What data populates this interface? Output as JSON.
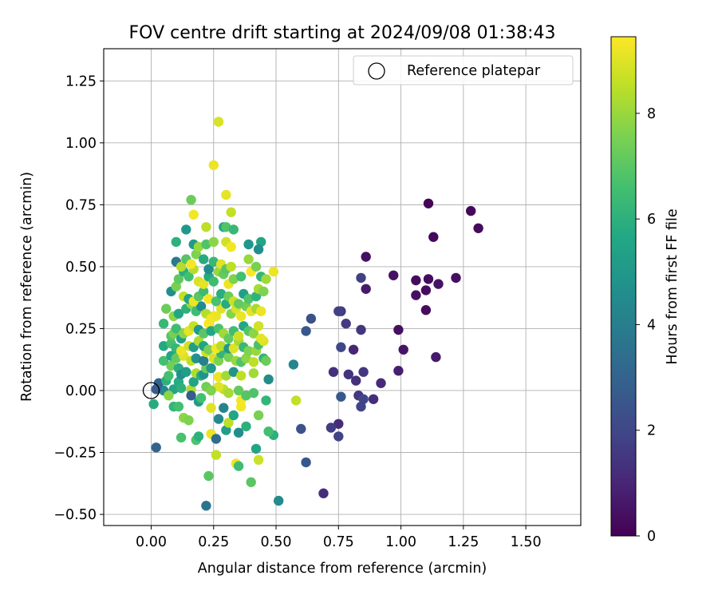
{
  "chart_data": {
    "type": "scatter",
    "title": "FOV centre drift starting at 2024/09/08 01:38:43",
    "xlabel": "Angular distance from reference (arcmin)",
    "ylabel": "Rotation from reference (arcmin)",
    "xlim": [
      -0.19,
      1.72
    ],
    "ylim": [
      -0.545,
      1.38
    ],
    "xticks": [
      "0.00",
      "0.25",
      "0.50",
      "0.75",
      "1.00",
      "1.25",
      "1.50"
    ],
    "yticks": [
      "−0.50",
      "−0.25",
      "0.00",
      "0.25",
      "0.50",
      "0.75",
      "1.00",
      "1.25"
    ],
    "grid": true,
    "legend": {
      "position": "top-right",
      "entries": [
        "Reference platepar"
      ]
    },
    "reference_point": {
      "x": 0.0,
      "y": 0.0
    },
    "colorbar": {
      "label": "Hours from first FF file",
      "colormap": "viridis",
      "range": [
        0,
        9.45
      ],
      "ticks": [
        "0",
        "2",
        "4",
        "6",
        "8"
      ]
    },
    "points": [
      [
        1.11,
        0.755,
        0.1
      ],
      [
        1.28,
        0.725,
        0.2
      ],
      [
        1.31,
        0.655,
        0.3
      ],
      [
        1.13,
        0.62,
        0.2
      ],
      [
        0.86,
        0.54,
        0.4
      ],
      [
        0.84,
        0.455,
        1.8
      ],
      [
        0.97,
        0.465,
        0.4
      ],
      [
        1.06,
        0.445,
        0.3
      ],
      [
        1.11,
        0.45,
        0.3
      ],
      [
        1.22,
        0.455,
        0.4
      ],
      [
        1.15,
        0.43,
        0.5
      ],
      [
        1.1,
        0.405,
        0.3
      ],
      [
        0.86,
        0.41,
        0.7
      ],
      [
        1.06,
        0.385,
        0.4
      ],
      [
        1.1,
        0.325,
        0.3
      ],
      [
        0.76,
        0.32,
        1.5
      ],
      [
        0.75,
        0.32,
        1.8
      ],
      [
        0.64,
        0.29,
        2.3
      ],
      [
        0.78,
        0.27,
        1.6
      ],
      [
        0.62,
        0.24,
        2.6
      ],
      [
        0.84,
        0.245,
        1.5
      ],
      [
        0.99,
        0.245,
        0.4
      ],
      [
        0.76,
        0.175,
        2.0
      ],
      [
        0.81,
        0.165,
        1.0
      ],
      [
        1.01,
        0.165,
        0.5
      ],
      [
        1.14,
        0.135,
        0.7
      ],
      [
        0.73,
        0.075,
        1.3
      ],
      [
        0.79,
        0.065,
        1.4
      ],
      [
        0.85,
        0.075,
        1.5
      ],
      [
        0.99,
        0.08,
        0.8
      ],
      [
        0.82,
        0.04,
        1.3
      ],
      [
        0.92,
        0.03,
        1.1
      ],
      [
        0.76,
        -0.025,
        2.6
      ],
      [
        0.83,
        -0.02,
        1.5
      ],
      [
        0.85,
        -0.035,
        2.0
      ],
      [
        0.89,
        -0.035,
        1.2
      ],
      [
        0.84,
        -0.065,
        1.9
      ],
      [
        0.75,
        -0.135,
        1.2
      ],
      [
        0.72,
        -0.15,
        1.7
      ],
      [
        0.6,
        -0.155,
        2.4
      ],
      [
        0.75,
        -0.185,
        1.9
      ],
      [
        0.62,
        -0.29,
        2.6
      ],
      [
        0.69,
        -0.415,
        1.2
      ],
      [
        0.57,
        0.105,
        4.3
      ],
      [
        0.58,
        -0.04,
        8.6
      ],
      [
        0.51,
        -0.445,
        4.5
      ],
      [
        0.02,
        -0.23,
        3.0
      ],
      [
        0.22,
        -0.465,
        3.6
      ],
      [
        0.23,
        -0.345,
        7.0
      ],
      [
        0.4,
        -0.37,
        7.0
      ],
      [
        0.34,
        -0.295,
        9.2
      ],
      [
        0.35,
        -0.305,
        6.5
      ],
      [
        0.26,
        -0.26,
        8.6
      ],
      [
        0.43,
        -0.28,
        8.7
      ],
      [
        0.42,
        -0.235,
        5.5
      ],
      [
        0.49,
        -0.18,
        6.0
      ],
      [
        0.47,
        -0.165,
        6.6
      ],
      [
        0.43,
        -0.1,
        7.5
      ],
      [
        0.24,
        -0.175,
        9.2
      ],
      [
        0.18,
        -0.2,
        6.8
      ],
      [
        0.19,
        -0.185,
        6.0
      ],
      [
        0.12,
        -0.19,
        6.7
      ],
      [
        0.26,
        -0.195,
        3.4
      ],
      [
        0.3,
        -0.16,
        5.2
      ],
      [
        0.35,
        -0.17,
        4.6
      ],
      [
        0.38,
        -0.145,
        6.0
      ],
      [
        0.27,
        -0.115,
        4.4
      ],
      [
        0.31,
        -0.13,
        8.5
      ],
      [
        0.13,
        -0.11,
        7.8
      ],
      [
        0.15,
        -0.12,
        7.6
      ],
      [
        0.24,
        -0.07,
        9.0
      ],
      [
        0.29,
        -0.07,
        4.2
      ],
      [
        0.36,
        -0.065,
        9.3
      ],
      [
        0.36,
        -0.04,
        9.3
      ],
      [
        0.46,
        -0.04,
        6.2
      ],
      [
        0.41,
        -0.01,
        6.8
      ],
      [
        0.35,
        0.0,
        7.2
      ],
      [
        0.29,
        0.005,
        8.5
      ],
      [
        0.27,
        0.015,
        9.0
      ],
      [
        0.22,
        0.015,
        7.4
      ],
      [
        0.16,
        0.005,
        8.3
      ],
      [
        0.05,
        0.0,
        4.3
      ],
      [
        0.02,
        0.005,
        2.8
      ],
      [
        0.03,
        0.03,
        3.0
      ],
      [
        0.09,
        0.005,
        5.5
      ],
      [
        0.16,
        -0.02,
        2.8
      ],
      [
        0.17,
        0.035,
        5.5
      ],
      [
        0.11,
        0.035,
        5.8
      ],
      [
        0.01,
        -0.055,
        5.8
      ],
      [
        0.09,
        -0.065,
        6.2
      ],
      [
        0.11,
        -0.065,
        6.6
      ],
      [
        0.19,
        -0.045,
        5.2
      ],
      [
        0.06,
        0.04,
        6.0
      ],
      [
        0.07,
        0.06,
        6.6
      ],
      [
        0.08,
        0.1,
        7.4
      ],
      [
        0.11,
        0.09,
        5.9
      ],
      [
        0.12,
        0.065,
        4.7
      ],
      [
        0.14,
        0.075,
        5.2
      ],
      [
        0.18,
        0.07,
        8.3
      ],
      [
        0.2,
        0.06,
        5.9
      ],
      [
        0.21,
        0.065,
        4.8
      ],
      [
        0.22,
        0.09,
        7.2
      ],
      [
        0.24,
        0.09,
        5.0
      ],
      [
        0.27,
        0.055,
        9.2
      ],
      [
        0.3,
        0.06,
        8.1
      ],
      [
        0.33,
        0.075,
        4.8
      ],
      [
        0.36,
        0.06,
        8.5
      ],
      [
        0.41,
        0.07,
        8.1
      ],
      [
        0.47,
        0.045,
        4.6
      ],
      [
        0.05,
        0.12,
        6.6
      ],
      [
        0.08,
        0.14,
        5.5
      ],
      [
        0.1,
        0.13,
        7.2
      ],
      [
        0.13,
        0.14,
        9.0
      ],
      [
        0.16,
        0.12,
        8.5
      ],
      [
        0.18,
        0.13,
        4.8
      ],
      [
        0.21,
        0.12,
        4.0
      ],
      [
        0.22,
        0.155,
        8.7
      ],
      [
        0.25,
        0.13,
        8.9
      ],
      [
        0.27,
        0.12,
        7.6
      ],
      [
        0.28,
        0.15,
        6.2
      ],
      [
        0.31,
        0.135,
        7.5
      ],
      [
        0.34,
        0.12,
        8.0
      ],
      [
        0.36,
        0.115,
        6.8
      ],
      [
        0.38,
        0.13,
        7.8
      ],
      [
        0.41,
        0.115,
        8.5
      ],
      [
        0.45,
        0.13,
        6.2
      ],
      [
        0.46,
        0.12,
        7.3
      ],
      [
        0.05,
        0.18,
        5.7
      ],
      [
        0.08,
        0.19,
        6.6
      ],
      [
        0.1,
        0.17,
        6.2
      ],
      [
        0.12,
        0.16,
        9.2
      ],
      [
        0.15,
        0.18,
        8.8
      ],
      [
        0.17,
        0.175,
        5.2
      ],
      [
        0.19,
        0.2,
        8.3
      ],
      [
        0.21,
        0.18,
        5.5
      ],
      [
        0.23,
        0.165,
        7.5
      ],
      [
        0.26,
        0.17,
        9.3
      ],
      [
        0.28,
        0.18,
        8.4
      ],
      [
        0.31,
        0.17,
        5.0
      ],
      [
        0.33,
        0.17,
        9.0
      ],
      [
        0.35,
        0.2,
        8.2
      ],
      [
        0.37,
        0.175,
        6.3
      ],
      [
        0.39,
        0.16,
        7.6
      ],
      [
        0.42,
        0.16,
        8.0
      ],
      [
        0.43,
        0.185,
        6.7
      ],
      [
        0.45,
        0.2,
        9.0
      ],
      [
        0.05,
        0.27,
        6.3
      ],
      [
        0.08,
        0.22,
        6.9
      ],
      [
        0.09,
        0.23,
        7.5
      ],
      [
        0.1,
        0.25,
        6.5
      ],
      [
        0.12,
        0.21,
        5.3
      ],
      [
        0.13,
        0.23,
        7.8
      ],
      [
        0.15,
        0.24,
        9.1
      ],
      [
        0.17,
        0.26,
        8.6
      ],
      [
        0.19,
        0.245,
        5.1
      ],
      [
        0.21,
        0.23,
        7.0
      ],
      [
        0.23,
        0.27,
        9.4
      ],
      [
        0.24,
        0.24,
        5.6
      ],
      [
        0.25,
        0.3,
        9.2
      ],
      [
        0.27,
        0.25,
        6.7
      ],
      [
        0.29,
        0.23,
        8.1
      ],
      [
        0.31,
        0.21,
        7.2
      ],
      [
        0.33,
        0.24,
        6.5
      ],
      [
        0.35,
        0.22,
        8.7
      ],
      [
        0.37,
        0.26,
        5.6
      ],
      [
        0.39,
        0.24,
        6.9
      ],
      [
        0.41,
        0.23,
        7.8
      ],
      [
        0.43,
        0.26,
        8.8
      ],
      [
        0.44,
        0.21,
        9.1
      ],
      [
        0.06,
        0.33,
        7.3
      ],
      [
        0.09,
        0.3,
        7.8
      ],
      [
        0.11,
        0.31,
        5.6
      ],
      [
        0.14,
        0.33,
        6.0
      ],
      [
        0.16,
        0.35,
        8.0
      ],
      [
        0.18,
        0.32,
        6.5
      ],
      [
        0.2,
        0.34,
        4.5
      ],
      [
        0.22,
        0.31,
        8.4
      ],
      [
        0.24,
        0.29,
        9.3
      ],
      [
        0.26,
        0.3,
        9.2
      ],
      [
        0.28,
        0.33,
        9.0
      ],
      [
        0.3,
        0.35,
        5.8
      ],
      [
        0.32,
        0.31,
        7.7
      ],
      [
        0.34,
        0.33,
        8.9
      ],
      [
        0.36,
        0.3,
        9.2
      ],
      [
        0.38,
        0.34,
        7.4
      ],
      [
        0.4,
        0.32,
        9.1
      ],
      [
        0.42,
        0.33,
        8.2
      ],
      [
        0.44,
        0.32,
        9.2
      ],
      [
        0.08,
        0.4,
        4.7
      ],
      [
        0.1,
        0.42,
        7.5
      ],
      [
        0.13,
        0.38,
        8.6
      ],
      [
        0.15,
        0.37,
        5.5
      ],
      [
        0.17,
        0.36,
        9.2
      ],
      [
        0.19,
        0.38,
        7.0
      ],
      [
        0.21,
        0.4,
        6.4
      ],
      [
        0.23,
        0.37,
        9.3
      ],
      [
        0.26,
        0.36,
        6.7
      ],
      [
        0.28,
        0.39,
        5.9
      ],
      [
        0.31,
        0.38,
        7.3
      ],
      [
        0.33,
        0.36,
        8.7
      ],
      [
        0.35,
        0.35,
        7.2
      ],
      [
        0.37,
        0.39,
        5.3
      ],
      [
        0.39,
        0.37,
        6.8
      ],
      [
        0.42,
        0.38,
        6.1
      ],
      [
        0.43,
        0.41,
        8.2
      ],
      [
        0.45,
        0.4,
        7.6
      ],
      [
        0.11,
        0.45,
        7.1
      ],
      [
        0.13,
        0.48,
        5.9
      ],
      [
        0.15,
        0.46,
        6.6
      ],
      [
        0.17,
        0.49,
        8.4
      ],
      [
        0.19,
        0.44,
        8.9
      ],
      [
        0.21,
        0.43,
        9.1
      ],
      [
        0.23,
        0.46,
        5.7
      ],
      [
        0.25,
        0.44,
        6.5
      ],
      [
        0.27,
        0.48,
        8.0
      ],
      [
        0.29,
        0.47,
        7.2
      ],
      [
        0.31,
        0.43,
        9.2
      ],
      [
        0.33,
        0.45,
        7.6
      ],
      [
        0.36,
        0.46,
        6.6
      ],
      [
        0.4,
        0.48,
        9.4
      ],
      [
        0.44,
        0.46,
        6.2
      ],
      [
        0.46,
        0.45,
        8.1
      ],
      [
        0.1,
        0.52,
        3.8
      ],
      [
        0.12,
        0.5,
        8.4
      ],
      [
        0.14,
        0.53,
        6.9
      ],
      [
        0.16,
        0.51,
        9.3
      ],
      [
        0.18,
        0.55,
        7.6
      ],
      [
        0.21,
        0.53,
        5.8
      ],
      [
        0.23,
        0.49,
        4.5
      ],
      [
        0.25,
        0.52,
        6.3
      ],
      [
        0.28,
        0.51,
        9.0
      ],
      [
        0.3,
        0.49,
        7.0
      ],
      [
        0.32,
        0.5,
        8.5
      ],
      [
        0.39,
        0.53,
        8.0
      ],
      [
        0.42,
        0.5,
        7.5
      ],
      [
        0.49,
        0.48,
        9.2
      ],
      [
        0.1,
        0.6,
        6.0
      ],
      [
        0.14,
        0.65,
        5.0
      ],
      [
        0.17,
        0.59,
        5.1
      ],
      [
        0.19,
        0.58,
        8.0
      ],
      [
        0.22,
        0.59,
        6.8
      ],
      [
        0.25,
        0.6,
        7.8
      ],
      [
        0.3,
        0.6,
        8.8
      ],
      [
        0.32,
        0.58,
        9.3
      ],
      [
        0.39,
        0.59,
        5.0
      ],
      [
        0.44,
        0.6,
        5.5
      ],
      [
        0.43,
        0.57,
        4.6
      ],
      [
        0.22,
        0.66,
        8.5
      ],
      [
        0.29,
        0.66,
        5.5
      ],
      [
        0.3,
        0.66,
        6.8
      ],
      [
        0.33,
        0.65,
        6.3
      ],
      [
        0.17,
        0.71,
        9.3
      ],
      [
        0.16,
        0.77,
        7.3
      ],
      [
        0.32,
        0.72,
        8.6
      ],
      [
        0.3,
        0.79,
        9.1
      ],
      [
        0.25,
        0.91,
        9.2
      ],
      [
        0.27,
        1.085,
        8.9
      ],
      [
        0.24,
        0.0,
        7.6
      ],
      [
        0.31,
        -0.01,
        8.2
      ],
      [
        0.38,
        -0.02,
        6.9
      ],
      [
        0.33,
        -0.1,
        5.6
      ],
      [
        0.2,
        -0.03,
        6.6
      ],
      [
        0.07,
        -0.02,
        7.8
      ],
      [
        0.12,
        0.01,
        6.0
      ]
    ]
  }
}
